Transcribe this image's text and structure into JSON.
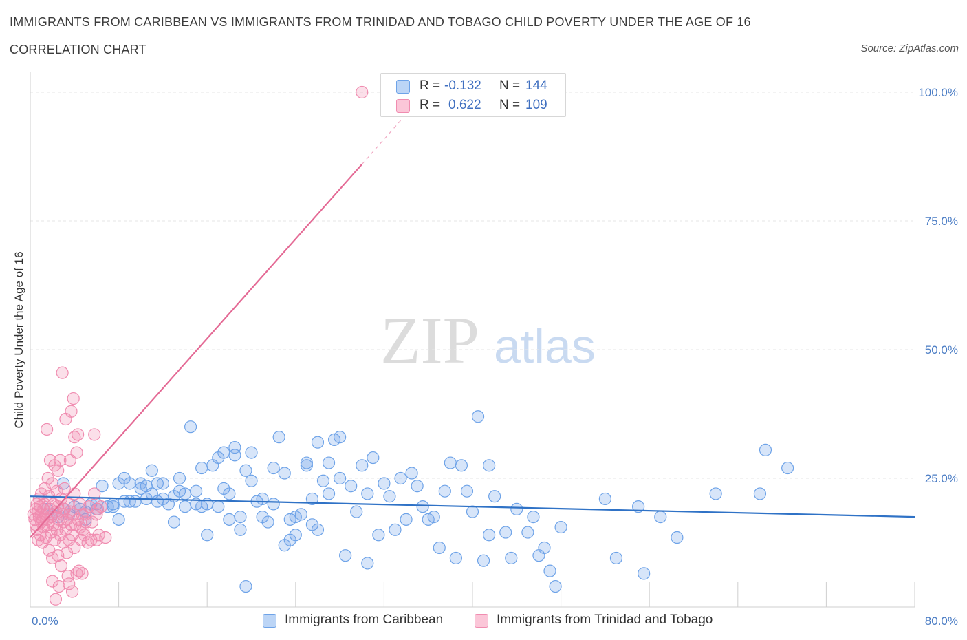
{
  "title": "IMMIGRANTS FROM CARIBBEAN VS IMMIGRANTS FROM TRINIDAD AND TOBAGO CHILD POVERTY UNDER THE AGE OF 16",
  "subtitle": "CORRELATION CHART",
  "source": "Source: ZipAtlas.com",
  "watermark": {
    "zip": "ZIP",
    "atlas": "atlas"
  },
  "legend": {
    "r_label": "R =",
    "n_label": "N =",
    "rows": [
      {
        "r": "-0.132",
        "n": "144",
        "color": "#6ea3e8"
      },
      {
        "r": "0.622",
        "n": "109",
        "color": "#f08cb0"
      }
    ]
  },
  "chart_data": {
    "type": "scatter",
    "xlabel": "",
    "ylabel": "Child Poverty Under the Age of 16",
    "xlim": [
      0,
      80
    ],
    "ylim": [
      0,
      100
    ],
    "x_ticks": [
      {
        "value": 0,
        "label": "0.0%"
      },
      {
        "value": 80,
        "label": "80.0%"
      }
    ],
    "y_ticks": [
      {
        "value": 25,
        "label": "25.0%"
      },
      {
        "value": 50,
        "label": "50.0%"
      },
      {
        "value": 75,
        "label": "75.0%"
      },
      {
        "value": 100,
        "label": "100.0%"
      }
    ],
    "grid": true,
    "legend_position": "top-center",
    "series": [
      {
        "name": "Immigrants from Caribbean",
        "color": "#6ea3e8",
        "trend": {
          "x": [
            0,
            80
          ],
          "y": [
            21.5,
            17.5
          ]
        },
        "points": [
          [
            1.5,
            19
          ],
          [
            2,
            18
          ],
          [
            2.5,
            17.5
          ],
          [
            3,
            19
          ],
          [
            3,
            24
          ],
          [
            3.5,
            18
          ],
          [
            4,
            19.5
          ],
          [
            4.5,
            19
          ],
          [
            5,
            18.5
          ],
          [
            5,
            17
          ],
          [
            5.5,
            20
          ],
          [
            6,
            20
          ],
          [
            6,
            19
          ],
          [
            6.5,
            23.5
          ],
          [
            7,
            19.5
          ],
          [
            7.5,
            19.5
          ],
          [
            7.5,
            20
          ],
          [
            8,
            24
          ],
          [
            8,
            17
          ],
          [
            8.5,
            25
          ],
          [
            8.5,
            20.5
          ],
          [
            9,
            20.5
          ],
          [
            9,
            24
          ],
          [
            9.5,
            20.5
          ],
          [
            10,
            23
          ],
          [
            10,
            24
          ],
          [
            10.5,
            21
          ],
          [
            10.5,
            23.5
          ],
          [
            11,
            26.5
          ],
          [
            11,
            22
          ],
          [
            11.5,
            20.5
          ],
          [
            11.5,
            24
          ],
          [
            12,
            24
          ],
          [
            12,
            21
          ],
          [
            12.5,
            20
          ],
          [
            13,
            21.5
          ],
          [
            13,
            16.5
          ],
          [
            13.5,
            22.5
          ],
          [
            13.5,
            25
          ],
          [
            14,
            22
          ],
          [
            14,
            19.5
          ],
          [
            14.5,
            35
          ],
          [
            15,
            22.5
          ],
          [
            15,
            20
          ],
          [
            15.5,
            27
          ],
          [
            15.5,
            19.5
          ],
          [
            16,
            20
          ],
          [
            16,
            14
          ],
          [
            16.5,
            27.5
          ],
          [
            17,
            29
          ],
          [
            17,
            19.5
          ],
          [
            17.5,
            30
          ],
          [
            17.5,
            23
          ],
          [
            18,
            17
          ],
          [
            18,
            22
          ],
          [
            18.5,
            29.5
          ],
          [
            18.5,
            31
          ],
          [
            19,
            17.5
          ],
          [
            19,
            15
          ],
          [
            19.5,
            26.5
          ],
          [
            19.5,
            4
          ],
          [
            20,
            24.5
          ],
          [
            20,
            30
          ],
          [
            20.5,
            20.5
          ],
          [
            21,
            21
          ],
          [
            21,
            17.5
          ],
          [
            21.5,
            16.5
          ],
          [
            22,
            27
          ],
          [
            22,
            20
          ],
          [
            22.5,
            33
          ],
          [
            23,
            26
          ],
          [
            23,
            12
          ],
          [
            23.5,
            13
          ],
          [
            23.5,
            17
          ],
          [
            24,
            17.5
          ],
          [
            24,
            14
          ],
          [
            24.5,
            18
          ],
          [
            25,
            27.5
          ],
          [
            25,
            28
          ],
          [
            25.5,
            21
          ],
          [
            25.5,
            16
          ],
          [
            26,
            15
          ],
          [
            26,
            32
          ],
          [
            26.5,
            24.5
          ],
          [
            27,
            28
          ],
          [
            27,
            22
          ],
          [
            27.5,
            32.5
          ],
          [
            28,
            25
          ],
          [
            28,
            33
          ],
          [
            28.5,
            10
          ],
          [
            29,
            23.5
          ],
          [
            29.5,
            18.5
          ],
          [
            30,
            27.5
          ],
          [
            30.5,
            22
          ],
          [
            30.5,
            8.5
          ],
          [
            31,
            29
          ],
          [
            31.5,
            14
          ],
          [
            32,
            24
          ],
          [
            32.5,
            21.5
          ],
          [
            33,
            15
          ],
          [
            33.5,
            25
          ],
          [
            34,
            17
          ],
          [
            34.5,
            26
          ],
          [
            35,
            23.5
          ],
          [
            35.5,
            19.5
          ],
          [
            36,
            17
          ],
          [
            36.5,
            17.5
          ],
          [
            37,
            11.5
          ],
          [
            37.5,
            22.5
          ],
          [
            38,
            28
          ],
          [
            38.5,
            9.5
          ],
          [
            39,
            27.5
          ],
          [
            39.5,
            22.5
          ],
          [
            40,
            18.5
          ],
          [
            40.5,
            37
          ],
          [
            41,
            9
          ],
          [
            41.5,
            27.5
          ],
          [
            41.5,
            14
          ],
          [
            42,
            21.5
          ],
          [
            43,
            14.5
          ],
          [
            43.5,
            9.5
          ],
          [
            44,
            19
          ],
          [
            45,
            14.5
          ],
          [
            45.5,
            17.5
          ],
          [
            46,
            10
          ],
          [
            46.5,
            11.5
          ],
          [
            47,
            7
          ],
          [
            47.5,
            4
          ],
          [
            48,
            15.5
          ],
          [
            52,
            21
          ],
          [
            53,
            9.5
          ],
          [
            55,
            19.5
          ],
          [
            55.5,
            6.5
          ],
          [
            57,
            17.5
          ],
          [
            58.5,
            13.5
          ],
          [
            62,
            22
          ],
          [
            66,
            22
          ],
          [
            66.5,
            30.5
          ],
          [
            68.5,
            27
          ]
        ]
      },
      {
        "name": "Immigrants from Trinidad and Tobago",
        "color": "#f08cb0",
        "trend": {
          "x": [
            0,
            30
          ],
          "y": [
            13.5,
            86
          ]
        },
        "trend_dashed": {
          "x": [
            30,
            33.5
          ],
          "y": [
            86,
            94.5
          ]
        },
        "points": [
          [
            0.3,
            18
          ],
          [
            0.4,
            17
          ],
          [
            0.5,
            19
          ],
          [
            0.5,
            16
          ],
          [
            0.6,
            20
          ],
          [
            0.6,
            15
          ],
          [
            0.7,
            18.5
          ],
          [
            0.7,
            13
          ],
          [
            0.8,
            17.5
          ],
          [
            0.8,
            21
          ],
          [
            0.9,
            19.5
          ],
          [
            0.9,
            14
          ],
          [
            1,
            18
          ],
          [
            1,
            16.5
          ],
          [
            1,
            22
          ],
          [
            1.1,
            17
          ],
          [
            1.1,
            12.5
          ],
          [
            1.2,
            19
          ],
          [
            1.2,
            15.5
          ],
          [
            1.3,
            20
          ],
          [
            1.3,
            23
          ],
          [
            1.4,
            18
          ],
          [
            1.4,
            13.5
          ],
          [
            1.5,
            34.5
          ],
          [
            1.5,
            17
          ],
          [
            1.6,
            16
          ],
          [
            1.6,
            25
          ],
          [
            1.7,
            21.5
          ],
          [
            1.7,
            11
          ],
          [
            1.8,
            28.5
          ],
          [
            1.8,
            19
          ],
          [
            1.9,
            17.5
          ],
          [
            1.9,
            14.5
          ],
          [
            2,
            24
          ],
          [
            2,
            9.5
          ],
          [
            2,
            5
          ],
          [
            2.1,
            20
          ],
          [
            2.1,
            16
          ],
          [
            2.2,
            27.5
          ],
          [
            2.2,
            13
          ],
          [
            2.3,
            18.5
          ],
          [
            2.3,
            1.5
          ],
          [
            2.4,
            22.5
          ],
          [
            2.4,
            15
          ],
          [
            2.5,
            26.5
          ],
          [
            2.5,
            19.5
          ],
          [
            2.5,
            10
          ],
          [
            2.6,
            17
          ],
          [
            2.6,
            4
          ],
          [
            2.7,
            28.5
          ],
          [
            2.7,
            14
          ],
          [
            2.8,
            21
          ],
          [
            2.8,
            8
          ],
          [
            2.9,
            18
          ],
          [
            2.9,
            45.5
          ],
          [
            3,
            16.5
          ],
          [
            3,
            12.5
          ],
          [
            3.1,
            19
          ],
          [
            3.1,
            23
          ],
          [
            3.2,
            15
          ],
          [
            3.2,
            36.5
          ],
          [
            3.3,
            17
          ],
          [
            3.3,
            10.5
          ],
          [
            3.4,
            20
          ],
          [
            3.4,
            6
          ],
          [
            3.5,
            13
          ],
          [
            3.5,
            4.5
          ],
          [
            3.6,
            28.5
          ],
          [
            3.6,
            18.5
          ],
          [
            3.7,
            38
          ],
          [
            3.7,
            16
          ],
          [
            3.8,
            3
          ],
          [
            3.8,
            14
          ],
          [
            3.9,
            40.5
          ],
          [
            3.9,
            18
          ],
          [
            4,
            33
          ],
          [
            4,
            22
          ],
          [
            4,
            11.5
          ],
          [
            4.1,
            16
          ],
          [
            4.2,
            30
          ],
          [
            4.2,
            6.5
          ],
          [
            4.3,
            17
          ],
          [
            4.3,
            33.5
          ],
          [
            4.4,
            7
          ],
          [
            4.5,
            15.5
          ],
          [
            4.5,
            20
          ],
          [
            4.6,
            13
          ],
          [
            4.7,
            18
          ],
          [
            4.7,
            6.5
          ],
          [
            4.8,
            15
          ],
          [
            4.9,
            14
          ],
          [
            5,
            16.5
          ],
          [
            5,
            18
          ],
          [
            5.2,
            12.5
          ],
          [
            5.3,
            19.5
          ],
          [
            5.5,
            13
          ],
          [
            5.6,
            16.5
          ],
          [
            5.8,
            22
          ],
          [
            5.8,
            33.5
          ],
          [
            6,
            18
          ],
          [
            6,
            13
          ],
          [
            6.1,
            19
          ],
          [
            6.2,
            14
          ],
          [
            6.4,
            19.5
          ],
          [
            6.8,
            13.5
          ],
          [
            30,
            100
          ]
        ]
      }
    ]
  }
}
